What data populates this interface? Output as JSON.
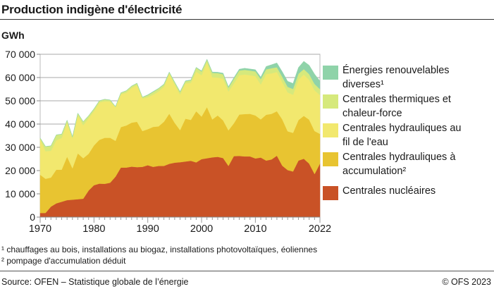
{
  "header": {
    "title": "Production indigène d'électricité"
  },
  "chart_data": {
    "type": "area",
    "stacked": true,
    "title": "Production indigène d'électricité",
    "ylabel": "GWh",
    "xlabel": "",
    "ylim": [
      0,
      70000
    ],
    "xlim": [
      1970,
      2022
    ],
    "yticks": [
      "0",
      "10 000",
      "20 000",
      "30 000",
      "40 000",
      "50 000",
      "60 000",
      "70 000"
    ],
    "xticks": [
      "1970",
      "1980",
      "1990",
      "2000",
      "2010",
      "2022"
    ],
    "grid": "horizontal",
    "legend_position": "right",
    "x": [
      1970,
      1971,
      1972,
      1973,
      1974,
      1975,
      1976,
      1977,
      1978,
      1979,
      1980,
      1981,
      1982,
      1983,
      1984,
      1985,
      1986,
      1987,
      1988,
      1989,
      1990,
      1991,
      1992,
      1993,
      1994,
      1995,
      1996,
      1997,
      1998,
      1999,
      2000,
      2001,
      2002,
      2003,
      2004,
      2005,
      2006,
      2007,
      2008,
      2009,
      2010,
      2011,
      2012,
      2013,
      2014,
      2015,
      2016,
      2017,
      2018,
      2019,
      2020,
      2021,
      2022
    ],
    "series": [
      {
        "name": "Centrales nucléaires",
        "color": "#c95226",
        "values": [
          1800,
          1800,
          4500,
          5900,
          6600,
          7300,
          7500,
          7700,
          7900,
          11400,
          13700,
          14400,
          14300,
          14800,
          17400,
          21300,
          21300,
          21700,
          21500,
          21600,
          22300,
          21600,
          22000,
          22000,
          22900,
          23400,
          23600,
          23900,
          24200,
          23500,
          24900,
          25300,
          25700,
          25900,
          25400,
          22000,
          26200,
          26300,
          26100,
          26100,
          25200,
          25600,
          24300,
          24800,
          26400,
          22100,
          20200,
          19600,
          24300,
          25100,
          23000,
          18500,
          23000
        ]
      },
      {
        "name": "Centrales hydrauliques à accumulation²",
        "color": "#e8c431",
        "values": [
          16400,
          14700,
          12500,
          14500,
          13800,
          18700,
          13500,
          19700,
          17400,
          15800,
          17100,
          18800,
          19800,
          19300,
          15400,
          17400,
          18100,
          18900,
          19500,
          15400,
          15500,
          17200,
          17000,
          19000,
          21600,
          17100,
          13800,
          18400,
          17600,
          22000,
          18300,
          22000,
          16300,
          17800,
          16200,
          15300,
          14100,
          17800,
          18200,
          18300,
          18500,
          16400,
          19700,
          19600,
          19100,
          19900,
          16700,
          16600,
          17400,
          18400,
          18900,
          18500,
          12800
        ]
      },
      {
        "name": "Centrales hydrauliques au fil de l'eau",
        "color": "#f2e86e",
        "values": [
          15300,
          11800,
          11500,
          12600,
          13600,
          14700,
          12800,
          16300,
          14200,
          15300,
          14700,
          16100,
          15700,
          15600,
          14400,
          14100,
          14100,
          14900,
          15700,
          14000,
          13700,
          13800,
          15000,
          15000,
          17100,
          16500,
          15300,
          15200,
          15900,
          17000,
          17800,
          19200,
          18100,
          16300,
          17900,
          16700,
          17100,
          16900,
          17000,
          16600,
          16900,
          15000,
          17500,
          17400,
          16900,
          16000,
          16700,
          16400,
          17300,
          17800,
          17100,
          17500,
          16700
        ]
      },
      {
        "name": "Centrales thermiques et chaleur-force",
        "color": "#d6e97c",
        "values": [
          500,
          2000,
          2100,
          2300,
          1600,
          900,
          700,
          900,
          1500,
          1000,
          1000,
          700,
          800,
          600,
          300,
          600,
          800,
          800,
          800,
          500,
          900,
          1200,
          1200,
          1000,
          600,
          900,
          1100,
          900,
          1100,
          1700,
          1600,
          1100,
          1900,
          1900,
          1900,
          1600,
          2000,
          2000,
          2000,
          2000,
          2000,
          2300,
          2000,
          2200,
          2000,
          2300,
          2400,
          2500,
          2600,
          2300,
          2500,
          2700,
          2500
        ]
      },
      {
        "name": "Énergies renouvelables diverses¹",
        "color": "#8fd3a9",
        "values": [
          100,
          100,
          100,
          100,
          100,
          100,
          100,
          100,
          100,
          100,
          100,
          100,
          100,
          100,
          100,
          100,
          100,
          100,
          100,
          100,
          200,
          200,
          200,
          200,
          200,
          200,
          200,
          200,
          200,
          200,
          300,
          300,
          400,
          400,
          500,
          500,
          500,
          600,
          700,
          700,
          800,
          900,
          1300,
          1500,
          1900,
          2200,
          2400,
          2400,
          2700,
          3400,
          3800,
          4300,
          3500
        ]
      }
    ]
  },
  "legend": [
    {
      "label_line1": "Énergies renouvelables",
      "label_line2": "diverses¹",
      "color": "#8fd3a9"
    },
    {
      "label_line1": "Centrales thermiques et",
      "label_line2": "chaleur-force",
      "color": "#d6e97c"
    },
    {
      "label_line1": "Centrales hydrauliques au",
      "label_line2": "fil de l'eau",
      "color": "#f2e86e"
    },
    {
      "label_line1": "Centrales hydrauliques à",
      "label_line2": "accumulation²",
      "color": "#e8c431"
    },
    {
      "label_line1": "Centrales nucléaires",
      "label_line2": "",
      "color": "#c95226"
    }
  ],
  "footnotes": [
    "¹ chauffages au bois, installations au biogaz, installations photovoltaïques, éoliennes",
    "² pompage d'accumulation déduit"
  ],
  "footer": {
    "source": "Source: OFEN – Statistique globale de l’énergie",
    "copyright": "© OFS 2023"
  }
}
